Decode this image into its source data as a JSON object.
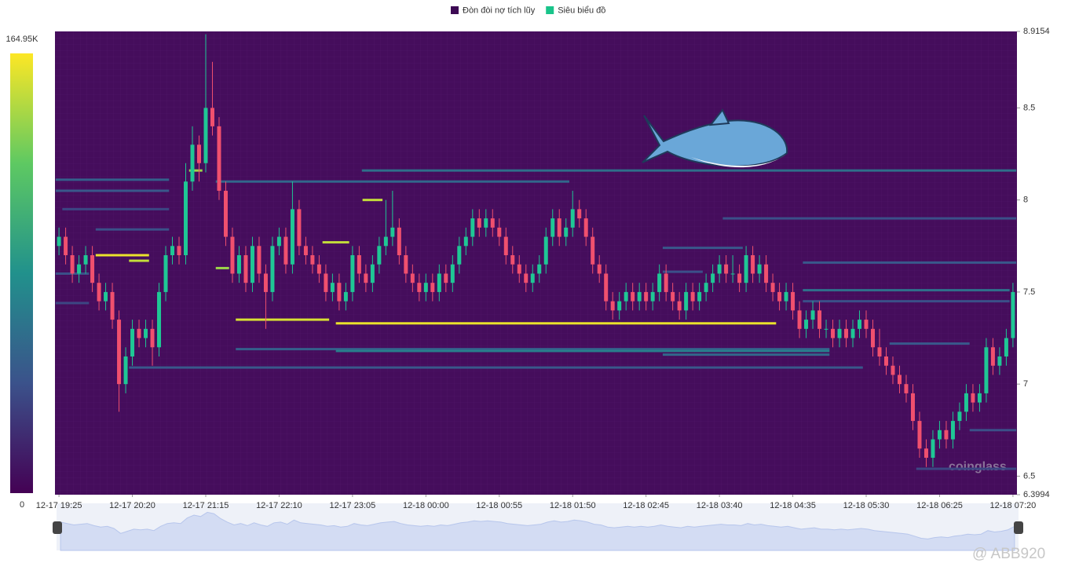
{
  "chart_data": {
    "type": "candlestick",
    "legend": [
      {
        "name": "Đòn đòi nợ tích lũy",
        "color": "#3d0a54"
      },
      {
        "name": "Siêu biểu đồ",
        "color": "#19c48a"
      }
    ],
    "up_color": "#1fc795",
    "down_color": "#f0506e",
    "xlim": [
      -0.6,
      143.6
    ],
    "xticks": [
      {
        "value": 0,
        "label": "12-17 19:25"
      },
      {
        "value": 11,
        "label": "12-17 20:20"
      },
      {
        "value": 22,
        "label": "12-17 21:15"
      },
      {
        "value": 33,
        "label": "12-17 22:10"
      },
      {
        "value": 44,
        "label": "12-17 23:05"
      },
      {
        "value": 55,
        "label": "12-18 00:00"
      },
      {
        "value": 66,
        "label": "12-18 00:55"
      },
      {
        "value": 77,
        "label": "12-18 01:50"
      },
      {
        "value": 88,
        "label": "12-18 02:45"
      },
      {
        "value": 99,
        "label": "12-18 03:40"
      },
      {
        "value": 110,
        "label": "12-18 04:35"
      },
      {
        "value": 121,
        "label": "12-18 05:30"
      },
      {
        "value": 132,
        "label": "12-18 06:25"
      },
      {
        "value": 143,
        "label": "12-18 07:20"
      }
    ],
    "ylim": [
      6.3994,
      8.9154
    ],
    "yticks": [
      6.3994,
      6.5,
      7,
      7.5,
      8,
      8.5,
      8.9154
    ],
    "colorscale": {
      "range": [
        0,
        164950
      ],
      "ticks": [
        0,
        {
          "value": 164950,
          "label": "164.95K"
        }
      ]
    },
    "candles": [
      [
        7.75,
        7.85,
        7.7,
        7.8
      ],
      [
        7.8,
        7.85,
        7.65,
        7.7
      ],
      [
        7.7,
        7.75,
        7.55,
        7.6
      ],
      [
        7.6,
        7.7,
        7.55,
        7.65
      ],
      [
        7.65,
        7.75,
        7.6,
        7.7
      ],
      [
        7.7,
        7.75,
        7.5,
        7.55
      ],
      [
        7.55,
        7.6,
        7.4,
        7.45
      ],
      [
        7.45,
        7.55,
        7.4,
        7.5
      ],
      [
        7.5,
        7.55,
        7.3,
        7.35
      ],
      [
        7.35,
        7.4,
        6.85,
        7.0
      ],
      [
        7.0,
        7.2,
        6.95,
        7.15
      ],
      [
        7.15,
        7.35,
        7.1,
        7.3
      ],
      [
        7.3,
        7.35,
        7.2,
        7.25
      ],
      [
        7.25,
        7.35,
        7.2,
        7.3
      ],
      [
        7.3,
        7.35,
        7.1,
        7.2
      ],
      [
        7.2,
        7.55,
        7.15,
        7.5
      ],
      [
        7.5,
        7.75,
        7.45,
        7.7
      ],
      [
        7.7,
        7.8,
        7.65,
        7.75
      ],
      [
        7.75,
        7.8,
        7.65,
        7.7
      ],
      [
        7.7,
        8.2,
        7.65,
        8.1
      ],
      [
        8.1,
        8.4,
        8.05,
        8.3
      ],
      [
        8.3,
        8.35,
        8.1,
        8.2
      ],
      [
        8.2,
        8.9,
        8.15,
        8.5
      ],
      [
        8.5,
        8.75,
        8.35,
        8.4
      ],
      [
        8.4,
        8.45,
        8.0,
        8.05
      ],
      [
        8.05,
        8.1,
        7.75,
        7.8
      ],
      [
        7.8,
        7.85,
        7.55,
        7.6
      ],
      [
        7.6,
        7.75,
        7.55,
        7.7
      ],
      [
        7.7,
        7.75,
        7.5,
        7.55
      ],
      [
        7.55,
        7.8,
        7.5,
        7.75
      ],
      [
        7.75,
        7.8,
        7.55,
        7.6
      ],
      [
        7.6,
        7.65,
        7.3,
        7.5
      ],
      [
        7.5,
        7.8,
        7.45,
        7.75
      ],
      [
        7.75,
        7.85,
        7.7,
        7.8
      ],
      [
        7.8,
        7.85,
        7.6,
        7.65
      ],
      [
        7.65,
        8.1,
        7.6,
        7.95
      ],
      [
        7.95,
        8.0,
        7.7,
        7.75
      ],
      [
        7.75,
        7.8,
        7.65,
        7.7
      ],
      [
        7.7,
        7.75,
        7.6,
        7.65
      ],
      [
        7.65,
        7.7,
        7.55,
        7.6
      ],
      [
        7.6,
        7.65,
        7.45,
        7.5
      ],
      [
        7.5,
        7.6,
        7.45,
        7.55
      ],
      [
        7.55,
        7.6,
        7.4,
        7.45
      ],
      [
        7.45,
        7.55,
        7.4,
        7.5
      ],
      [
        7.5,
        7.75,
        7.45,
        7.7
      ],
      [
        7.7,
        7.75,
        7.55,
        7.6
      ],
      [
        7.6,
        7.65,
        7.5,
        7.55
      ],
      [
        7.55,
        7.7,
        7.5,
        7.65
      ],
      [
        7.65,
        7.8,
        7.6,
        7.75
      ],
      [
        7.75,
        8.0,
        7.7,
        7.8
      ],
      [
        7.8,
        8.05,
        7.75,
        7.85
      ],
      [
        7.85,
        7.9,
        7.65,
        7.7
      ],
      [
        7.7,
        7.75,
        7.55,
        7.6
      ],
      [
        7.6,
        7.65,
        7.5,
        7.55
      ],
      [
        7.55,
        7.6,
        7.45,
        7.5
      ],
      [
        7.5,
        7.6,
        7.45,
        7.55
      ],
      [
        7.55,
        7.6,
        7.45,
        7.5
      ],
      [
        7.5,
        7.65,
        7.45,
        7.6
      ],
      [
        7.6,
        7.65,
        7.5,
        7.55
      ],
      [
        7.55,
        7.7,
        7.5,
        7.65
      ],
      [
        7.65,
        7.8,
        7.6,
        7.75
      ],
      [
        7.75,
        7.85,
        7.7,
        7.8
      ],
      [
        7.8,
        7.95,
        7.75,
        7.9
      ],
      [
        7.9,
        7.95,
        7.8,
        7.85
      ],
      [
        7.85,
        7.95,
        7.8,
        7.9
      ],
      [
        7.9,
        7.95,
        7.8,
        7.85
      ],
      [
        7.85,
        7.9,
        7.75,
        7.8
      ],
      [
        7.8,
        7.85,
        7.65,
        7.7
      ],
      [
        7.7,
        7.75,
        7.6,
        7.65
      ],
      [
        7.65,
        7.7,
        7.55,
        7.6
      ],
      [
        7.6,
        7.65,
        7.5,
        7.55
      ],
      [
        7.55,
        7.65,
        7.5,
        7.6
      ],
      [
        7.6,
        7.7,
        7.55,
        7.65
      ],
      [
        7.65,
        7.85,
        7.6,
        7.8
      ],
      [
        7.8,
        7.95,
        7.75,
        7.9
      ],
      [
        7.9,
        7.95,
        7.75,
        7.8
      ],
      [
        7.8,
        7.9,
        7.75,
        7.85
      ],
      [
        7.85,
        8.05,
        7.8,
        7.95
      ],
      [
        7.95,
        8.0,
        7.85,
        7.9
      ],
      [
        7.9,
        7.95,
        7.75,
        7.8
      ],
      [
        7.8,
        7.85,
        7.6,
        7.65
      ],
      [
        7.65,
        7.7,
        7.55,
        7.6
      ],
      [
        7.6,
        7.65,
        7.4,
        7.45
      ],
      [
        7.45,
        7.5,
        7.35,
        7.4
      ],
      [
        7.4,
        7.5,
        7.35,
        7.45
      ],
      [
        7.45,
        7.55,
        7.4,
        7.5
      ],
      [
        7.5,
        7.55,
        7.4,
        7.45
      ],
      [
        7.45,
        7.55,
        7.4,
        7.5
      ],
      [
        7.5,
        7.55,
        7.4,
        7.45
      ],
      [
        7.45,
        7.55,
        7.4,
        7.5
      ],
      [
        7.5,
        7.65,
        7.45,
        7.6
      ],
      [
        7.6,
        7.65,
        7.45,
        7.5
      ],
      [
        7.5,
        7.55,
        7.4,
        7.45
      ],
      [
        7.45,
        7.5,
        7.35,
        7.4
      ],
      [
        7.4,
        7.55,
        7.35,
        7.5
      ],
      [
        7.5,
        7.55,
        7.4,
        7.45
      ],
      [
        7.45,
        7.55,
        7.4,
        7.5
      ],
      [
        7.5,
        7.6,
        7.45,
        7.55
      ],
      [
        7.55,
        7.65,
        7.5,
        7.6
      ],
      [
        7.6,
        7.7,
        7.55,
        7.65
      ],
      [
        7.65,
        7.7,
        7.55,
        7.6
      ],
      [
        7.6,
        7.7,
        7.55,
        7.6
      ],
      [
        7.6,
        7.65,
        7.5,
        7.55
      ],
      [
        7.55,
        7.75,
        7.5,
        7.7
      ],
      [
        7.7,
        7.75,
        7.55,
        7.6
      ],
      [
        7.6,
        7.7,
        7.55,
        7.65
      ],
      [
        7.65,
        7.7,
        7.5,
        7.55
      ],
      [
        7.55,
        7.6,
        7.45,
        7.5
      ],
      [
        7.5,
        7.55,
        7.4,
        7.45
      ],
      [
        7.45,
        7.55,
        7.4,
        7.5
      ],
      [
        7.5,
        7.55,
        7.35,
        7.4
      ],
      [
        7.4,
        7.45,
        7.25,
        7.3
      ],
      [
        7.3,
        7.4,
        7.25,
        7.35
      ],
      [
        7.35,
        7.45,
        7.3,
        7.4
      ],
      [
        7.4,
        7.45,
        7.25,
        7.3
      ],
      [
        7.3,
        7.35,
        7.25,
        7.3
      ],
      [
        7.3,
        7.35,
        7.2,
        7.25
      ],
      [
        7.25,
        7.35,
        7.2,
        7.3
      ],
      [
        7.3,
        7.35,
        7.2,
        7.25
      ],
      [
        7.25,
        7.35,
        7.2,
        7.3
      ],
      [
        7.3,
        7.4,
        7.25,
        7.35
      ],
      [
        7.35,
        7.4,
        7.25,
        7.3
      ],
      [
        7.3,
        7.35,
        7.15,
        7.2
      ],
      [
        7.2,
        7.3,
        7.1,
        7.15
      ],
      [
        7.15,
        7.2,
        7.05,
        7.1
      ],
      [
        7.1,
        7.15,
        7.0,
        7.05
      ],
      [
        7.05,
        7.1,
        6.95,
        7.0
      ],
      [
        7.0,
        7.05,
        6.9,
        6.95
      ],
      [
        6.95,
        7.0,
        6.75,
        6.8
      ],
      [
        6.8,
        6.85,
        6.6,
        6.65
      ],
      [
        6.65,
        6.7,
        6.55,
        6.6
      ],
      [
        6.6,
        6.75,
        6.55,
        6.7
      ],
      [
        6.7,
        6.8,
        6.65,
        6.75
      ],
      [
        6.75,
        6.8,
        6.65,
        6.7
      ],
      [
        6.7,
        6.85,
        6.65,
        6.8
      ],
      [
        6.8,
        6.9,
        6.75,
        6.85
      ],
      [
        6.85,
        7.0,
        6.8,
        6.95
      ],
      [
        6.95,
        7.0,
        6.85,
        6.9
      ],
      [
        6.9,
        7.0,
        6.85,
        6.95
      ],
      [
        6.95,
        7.25,
        6.9,
        7.2
      ],
      [
        7.2,
        7.25,
        7.05,
        7.1
      ],
      [
        7.1,
        7.2,
        7.05,
        7.15
      ],
      [
        7.15,
        7.3,
        7.1,
        7.25
      ],
      [
        7.25,
        7.55,
        7.2,
        7.5
      ]
    ],
    "heatmap_levels": [
      {
        "price": 8.16,
        "start": 45.4,
        "end": 143.5,
        "intensity": 60000
      },
      {
        "price": 8.1,
        "start": 23.5,
        "end": 76.5,
        "intensity": 55000
      },
      {
        "price": 8.11,
        "start": -0.5,
        "end": 16.5,
        "intensity": 50000
      },
      {
        "price": 8.05,
        "start": -0.5,
        "end": 16.5,
        "intensity": 45000
      },
      {
        "price": 7.95,
        "start": 0.5,
        "end": 16.5,
        "intensity": 35000
      },
      {
        "price": 7.84,
        "start": 5.5,
        "end": 16.5,
        "intensity": 40000
      },
      {
        "price": 7.7,
        "start": 5.5,
        "end": 13.5,
        "intensity": 160000
      },
      {
        "price": 7.67,
        "start": 10.5,
        "end": 13.5,
        "intensity": 150000
      },
      {
        "price": 7.35,
        "start": 26.5,
        "end": 40.5,
        "intensity": 155000
      },
      {
        "price": 7.33,
        "start": 41.5,
        "end": 107.5,
        "intensity": 160000
      },
      {
        "price": 7.19,
        "start": 26.5,
        "end": 115.5,
        "intensity": 50000
      },
      {
        "price": 7.18,
        "start": 41.5,
        "end": 115.5,
        "intensity": 70000
      },
      {
        "price": 7.16,
        "start": 90.5,
        "end": 115.5,
        "intensity": 55000
      },
      {
        "price": 7.09,
        "start": 10.5,
        "end": 120.5,
        "intensity": 45000
      },
      {
        "price": 7.9,
        "start": 99.5,
        "end": 143.5,
        "intensity": 40000
      },
      {
        "price": 7.66,
        "start": 111.5,
        "end": 143.5,
        "intensity": 45000
      },
      {
        "price": 7.51,
        "start": 111.5,
        "end": 142.5,
        "intensity": 60000
      },
      {
        "price": 7.45,
        "start": 111.5,
        "end": 142.5,
        "intensity": 40000
      },
      {
        "price": 7.22,
        "start": 124.5,
        "end": 136.5,
        "intensity": 45000
      },
      {
        "price": 6.75,
        "start": 136.5,
        "end": 143.5,
        "intensity": 40000
      },
      {
        "price": 6.54,
        "start": 128.5,
        "end": 143.5,
        "intensity": 35000
      },
      {
        "price": 7.61,
        "start": 90.5,
        "end": 96.5,
        "intensity": 40000
      },
      {
        "price": 7.74,
        "start": 90.5,
        "end": 102.5,
        "intensity": 45000
      },
      {
        "price": 7.6,
        "start": -0.5,
        "end": 4.5,
        "intensity": 40000
      },
      {
        "price": 7.44,
        "start": -0.5,
        "end": 4.5,
        "intensity": 35000
      },
      {
        "price": 8.0,
        "start": 45.5,
        "end": 48.5,
        "intensity": 150000
      },
      {
        "price": 7.77,
        "start": 39.5,
        "end": 43.5,
        "intensity": 150000
      },
      {
        "price": 7.63,
        "start": 23.5,
        "end": 25.5,
        "intensity": 140000
      },
      {
        "price": 8.16,
        "start": 19.5,
        "end": 21.5,
        "intensity": 140000
      }
    ],
    "watermark": "coinglass",
    "credit": "@ ABB920"
  }
}
